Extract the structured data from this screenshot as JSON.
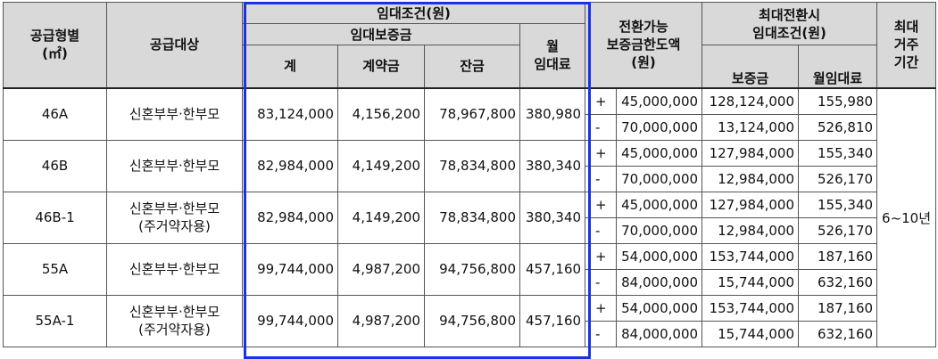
{
  "header": {
    "supply_type": "공급형별",
    "supply_unit": "(㎡)",
    "supply_target": "공급대상",
    "rent_conditions": "임대조건(원)",
    "rent_deposit": "임대보증금",
    "total": "계",
    "contract_fee": "계약금",
    "balance": "잔금",
    "monthly_rent_line1": "월",
    "monthly_rent_line2": "임대료",
    "convertible_line1": "전환가능",
    "convertible_line2": "보증금한도액",
    "convertible_line3": "(원)",
    "max_conv_line1": "최대전환시",
    "max_conv_line2": "임대조건(원)",
    "max_deposit": "보증금",
    "max_monthly": "월임대료",
    "residence_line1": "최대",
    "residence_line2": "거주",
    "residence_line3": "기간"
  },
  "residence_period": "6~10년",
  "rows": [
    {
      "type": "46A",
      "target": "신혼부부·한부모",
      "target_note": "",
      "total": "83,124,000",
      "contract": "4,156,200",
      "balance": "78,967,800",
      "monthly": "380,980",
      "up": {
        "sign": "+",
        "limit": "45,000,000",
        "deposit": "128,124,000",
        "monthly": "155,980"
      },
      "down": {
        "sign": "-",
        "limit": "70,000,000",
        "deposit": "13,124,000",
        "monthly": "526,810"
      }
    },
    {
      "type": "46B",
      "target": "신혼부부·한부모",
      "target_note": "",
      "total": "82,984,000",
      "contract": "4,149,200",
      "balance": "78,834,800",
      "monthly": "380,340",
      "up": {
        "sign": "+",
        "limit": "45,000,000",
        "deposit": "127,984,000",
        "monthly": "155,340"
      },
      "down": {
        "sign": "-",
        "limit": "70,000,000",
        "deposit": "12,984,000",
        "monthly": "526,170"
      }
    },
    {
      "type": "46B-1",
      "target": "신혼부부·한부모",
      "target_note": "(주거약자용)",
      "total": "82,984,000",
      "contract": "4,149,200",
      "balance": "78,834,800",
      "monthly": "380,340",
      "up": {
        "sign": "+",
        "limit": "45,000,000",
        "deposit": "127,984,000",
        "monthly": "155,340"
      },
      "down": {
        "sign": "-",
        "limit": "70,000,000",
        "deposit": "12,984,000",
        "monthly": "526,170"
      }
    },
    {
      "type": "55A",
      "target": "신혼부부·한부모",
      "target_note": "",
      "total": "99,744,000",
      "contract": "4,987,200",
      "balance": "94,756,800",
      "monthly": "457,160",
      "up": {
        "sign": "+",
        "limit": "54,000,000",
        "deposit": "153,744,000",
        "monthly": "187,160"
      },
      "down": {
        "sign": "-",
        "limit": "84,000,000",
        "deposit": "15,744,000",
        "monthly": "632,160"
      }
    },
    {
      "type": "55A-1",
      "target": "신혼부부·한부모",
      "target_note": "(주거약자용)",
      "total": "99,744,000",
      "contract": "4,987,200",
      "balance": "94,756,800",
      "monthly": "457,160",
      "up": {
        "sign": "+",
        "limit": "54,000,000",
        "deposit": "153,744,000",
        "monthly": "187,160"
      },
      "down": {
        "sign": "-",
        "limit": "84,000,000",
        "deposit": "15,744,000",
        "monthly": "632,160"
      }
    }
  ]
}
